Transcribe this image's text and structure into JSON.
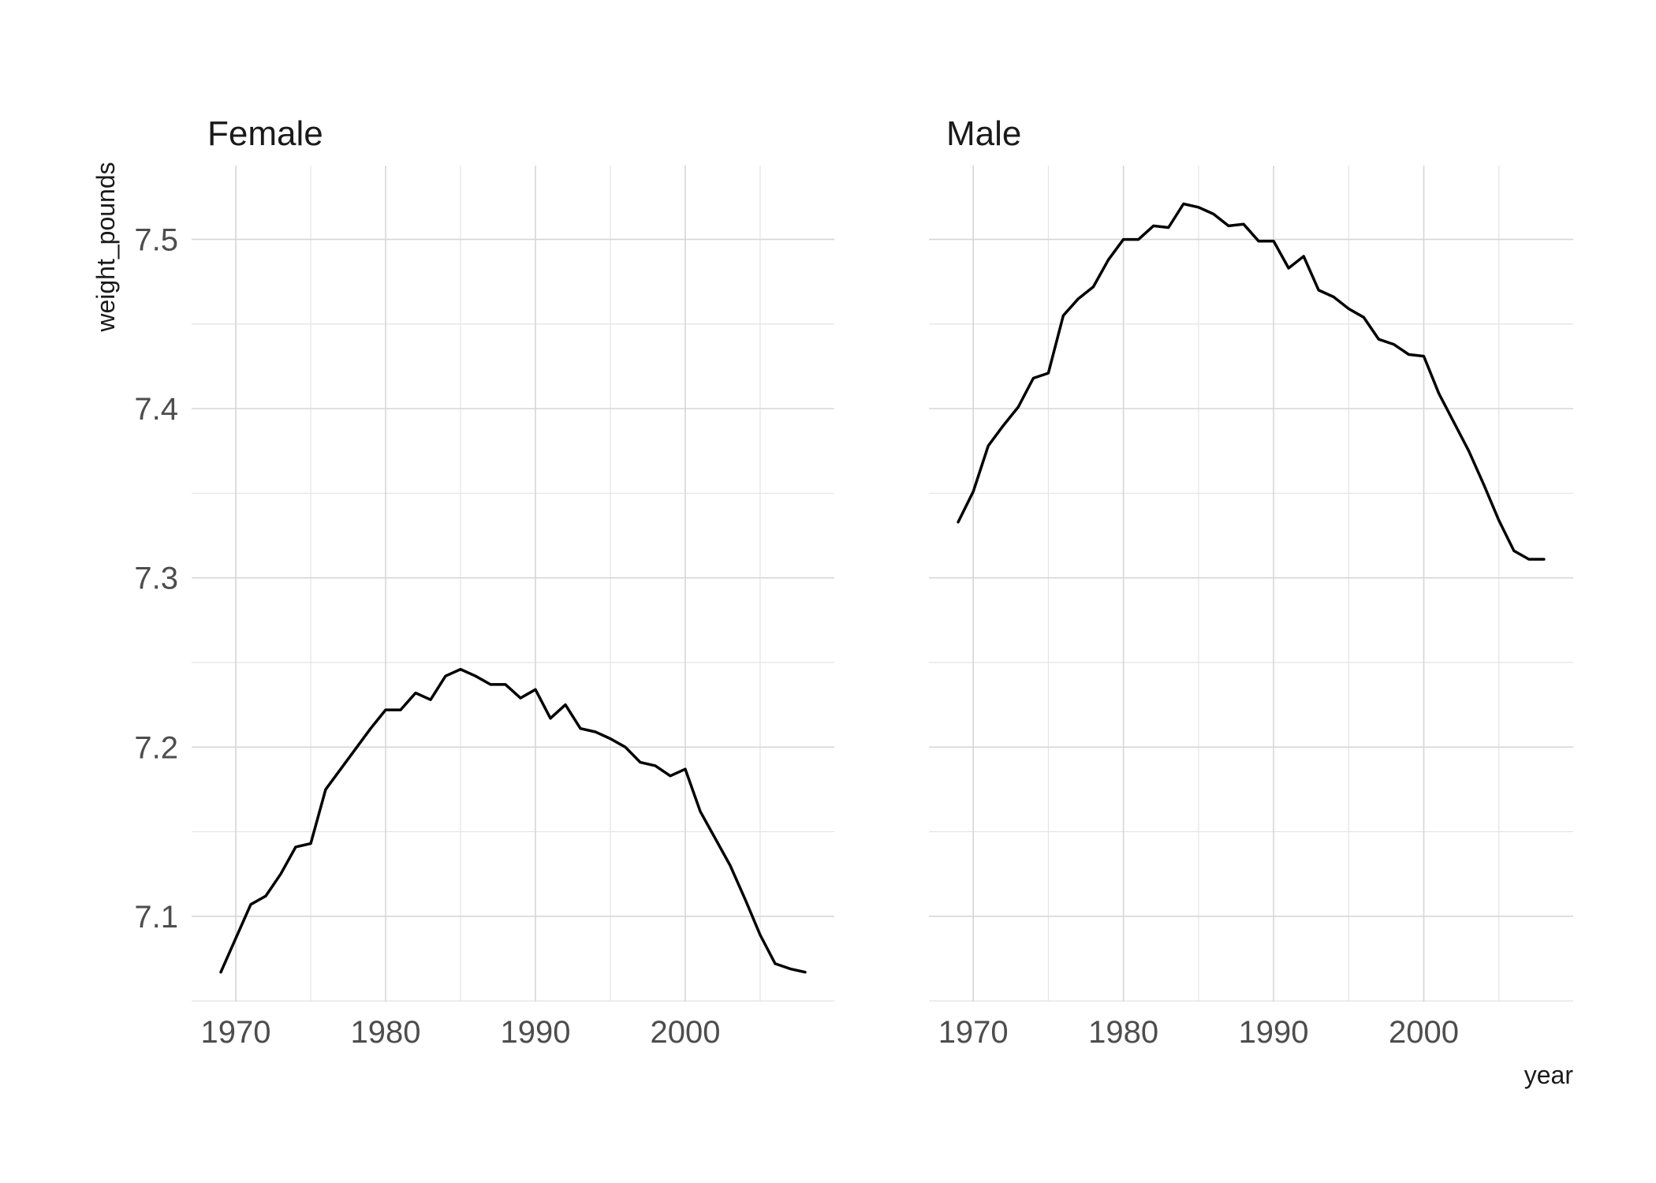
{
  "chart_data": {
    "type": "line",
    "xlabel": "year",
    "ylabel": "weight_pounds",
    "xlim": [
      1967.05,
      2009.95
    ],
    "ylim": [
      7.0496,
      7.5436
    ],
    "x_ticks": [
      1970,
      1980,
      1990,
      2000
    ],
    "y_ticks": [
      7.1,
      7.2,
      7.3,
      7.4,
      7.5
    ],
    "y_tick_labels": [
      "7.1",
      "7.2",
      "7.3",
      "7.4",
      "7.5"
    ],
    "grid": true,
    "facets": [
      {
        "title": "Female",
        "x": [
          1969,
          1970,
          1971,
          1972,
          1973,
          1974,
          1975,
          1976,
          1977,
          1978,
          1979,
          1980,
          1981,
          1982,
          1983,
          1984,
          1985,
          1986,
          1987,
          1988,
          1989,
          1990,
          1991,
          1992,
          1993,
          1994,
          1995,
          1996,
          1997,
          1998,
          1999,
          2000,
          2001,
          2002,
          2003,
          2004,
          2005,
          2006,
          2007,
          2008
        ],
        "values": [
          7.067,
          7.087,
          7.107,
          7.112,
          7.125,
          7.141,
          7.143,
          7.175,
          7.187,
          7.199,
          7.211,
          7.222,
          7.222,
          7.232,
          7.228,
          7.242,
          7.246,
          7.242,
          7.237,
          7.237,
          7.229,
          7.234,
          7.217,
          7.225,
          7.211,
          7.209,
          7.205,
          7.2,
          7.191,
          7.189,
          7.183,
          7.187,
          7.162,
          7.146,
          7.13,
          7.11,
          7.089,
          7.072,
          7.069,
          7.067
        ]
      },
      {
        "title": "Male",
        "x": [
          1969,
          1970,
          1971,
          1972,
          1973,
          1974,
          1975,
          1976,
          1977,
          1978,
          1979,
          1980,
          1981,
          1982,
          1983,
          1984,
          1985,
          1986,
          1987,
          1988,
          1989,
          1990,
          1991,
          1992,
          1993,
          1994,
          1995,
          1996,
          1997,
          1998,
          1999,
          2000,
          2001,
          2002,
          2003,
          2004,
          2005,
          2006,
          2007,
          2008
        ],
        "values": [
          7.333,
          7.351,
          7.378,
          7.39,
          7.401,
          7.418,
          7.421,
          7.455,
          7.465,
          7.472,
          7.488,
          7.5,
          7.5,
          7.508,
          7.507,
          7.521,
          7.519,
          7.515,
          7.508,
          7.509,
          7.499,
          7.499,
          7.483,
          7.49,
          7.47,
          7.466,
          7.459,
          7.454,
          7.441,
          7.438,
          7.432,
          7.431,
          7.409,
          7.392,
          7.375,
          7.355,
          7.334,
          7.316,
          7.311,
          7.311
        ]
      }
    ]
  }
}
